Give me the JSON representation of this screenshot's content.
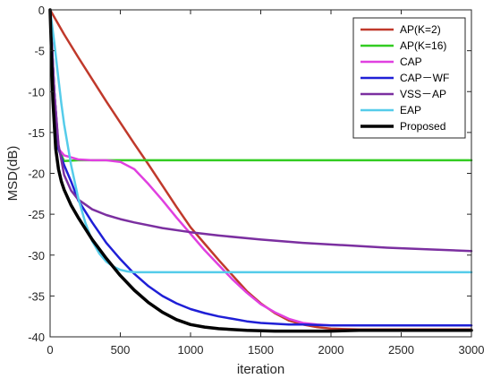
{
  "chart_data": {
    "type": "line",
    "title": "",
    "xlabel": "iteration",
    "ylabel": "MSD(dB)",
    "xlim": [
      0,
      3000
    ],
    "ylim": [
      -40,
      0
    ],
    "xticks": [
      0,
      500,
      1000,
      1500,
      2000,
      2500,
      3000
    ],
    "yticks": [
      0,
      -5,
      -10,
      -15,
      -20,
      -25,
      -30,
      -35,
      -40
    ],
    "grid": false,
    "legend_position": "top-right",
    "series": [
      {
        "name": "AP(K=2)",
        "color": "#c0392b",
        "x": [
          0,
          100,
          200,
          300,
          400,
          500,
          600,
          700,
          800,
          900,
          1000,
          1100,
          1200,
          1300,
          1400,
          1500,
          1600,
          1700,
          1800,
          1900,
          2000,
          2200,
          2400,
          2600,
          2800,
          3000
        ],
        "y": [
          0,
          -3,
          -5.8,
          -8.5,
          -11.2,
          -13.8,
          -16.4,
          -18.9,
          -21.5,
          -24.1,
          -26.6,
          -28.6,
          -30.6,
          -32.5,
          -34.4,
          -35.9,
          -37.1,
          -38,
          -38.5,
          -38.8,
          -39,
          -39.1,
          -39.1,
          -39.1,
          -39.1,
          -39.1
        ]
      },
      {
        "name": "AP(K=16)",
        "color": "#33cc22",
        "x": [
          0,
          30,
          60,
          100,
          200,
          400,
          600,
          800,
          1000,
          1200,
          1400,
          1600,
          1800,
          2000,
          2200,
          2400,
          2600,
          2800,
          3000
        ],
        "y": [
          0,
          -10,
          -17,
          -18.5,
          -18.4,
          -18.4,
          -18.4,
          -18.4,
          -18.4,
          -18.4,
          -18.4,
          -18.4,
          -18.4,
          -18.4,
          -18.4,
          -18.4,
          -18.4,
          -18.4,
          -18.4
        ]
      },
      {
        "name": "CAP",
        "color": "#e040e0",
        "x": [
          0,
          30,
          60,
          100,
          200,
          300,
          400,
          500,
          600,
          700,
          800,
          900,
          1000,
          1100,
          1200,
          1300,
          1400,
          1500,
          1600,
          1700,
          1800,
          1900,
          2000,
          2200,
          2400,
          2600,
          2800,
          3000
        ],
        "y": [
          0,
          -10,
          -17,
          -17.8,
          -18.3,
          -18.4,
          -18.4,
          -18.6,
          -19.5,
          -21.3,
          -23.3,
          -25.4,
          -27.4,
          -29.4,
          -31.2,
          -33,
          -34.6,
          -36,
          -37,
          -37.8,
          -38.3,
          -38.5,
          -38.6,
          -38.6,
          -38.6,
          -38.6,
          -38.6,
          -38.6
        ]
      },
      {
        "name": "CAP－WF",
        "color": "#1f1fd6",
        "x": [
          0,
          30,
          60,
          100,
          150,
          200,
          300,
          400,
          500,
          600,
          700,
          800,
          900,
          1000,
          1100,
          1200,
          1300,
          1400,
          1500,
          1600,
          1700,
          1800,
          2000,
          2200,
          2400,
          2600,
          2800,
          3000
        ],
        "y": [
          0,
          -10,
          -17,
          -19,
          -21,
          -23.3,
          -26,
          -28.5,
          -30.5,
          -32.3,
          -33.8,
          -35,
          -35.9,
          -36.6,
          -37.1,
          -37.5,
          -37.8,
          -38.1,
          -38.3,
          -38.4,
          -38.5,
          -38.5,
          -38.6,
          -38.6,
          -38.6,
          -38.6,
          -38.6,
          -38.6
        ]
      },
      {
        "name": "VSS－AP",
        "color": "#7b2fa0",
        "x": [
          0,
          30,
          60,
          100,
          150,
          200,
          300,
          400,
          500,
          600,
          800,
          1000,
          1200,
          1500,
          1800,
          2100,
          2400,
          2700,
          3000
        ],
        "y": [
          0,
          -10,
          -16.5,
          -20.2,
          -22.1,
          -23.2,
          -24.4,
          -25.1,
          -25.6,
          -26,
          -26.7,
          -27.2,
          -27.6,
          -28.1,
          -28.5,
          -28.8,
          -29.1,
          -29.3,
          -29.5
        ]
      },
      {
        "name": "EAP",
        "color": "#55ccea",
        "x": [
          0,
          30,
          60,
          80,
          100,
          150,
          200,
          250,
          300,
          350,
          400,
          450,
          500,
          550,
          600,
          700,
          800,
          1000,
          1200,
          1500,
          1800,
          2100,
          2400,
          2700,
          3000
        ],
        "y": [
          0,
          -4,
          -8.5,
          -11.5,
          -14,
          -19,
          -23,
          -26,
          -28.3,
          -29.8,
          -30.8,
          -31.4,
          -31.8,
          -32,
          -32.1,
          -32.1,
          -32.1,
          -32.1,
          -32.1,
          -32.1,
          -32.1,
          -32.1,
          -32.1,
          -32.1,
          -32.1
        ]
      },
      {
        "name": "Proposed",
        "color": "#000000",
        "x": [
          0,
          20,
          40,
          60,
          80,
          100,
          150,
          200,
          300,
          400,
          500,
          600,
          700,
          800,
          900,
          1000,
          1100,
          1200,
          1400,
          1600,
          1800,
          2000,
          2200,
          2400,
          2600,
          2800,
          3000
        ],
        "y": [
          0,
          -11,
          -17,
          -19.5,
          -21,
          -22,
          -23.9,
          -25.4,
          -28.1,
          -30.4,
          -32.5,
          -34.3,
          -35.8,
          -37,
          -37.9,
          -38.5,
          -38.8,
          -39,
          -39.2,
          -39.3,
          -39.3,
          -39.3,
          -39.2,
          -39.2,
          -39.2,
          -39.2,
          -39.2
        ]
      }
    ]
  }
}
